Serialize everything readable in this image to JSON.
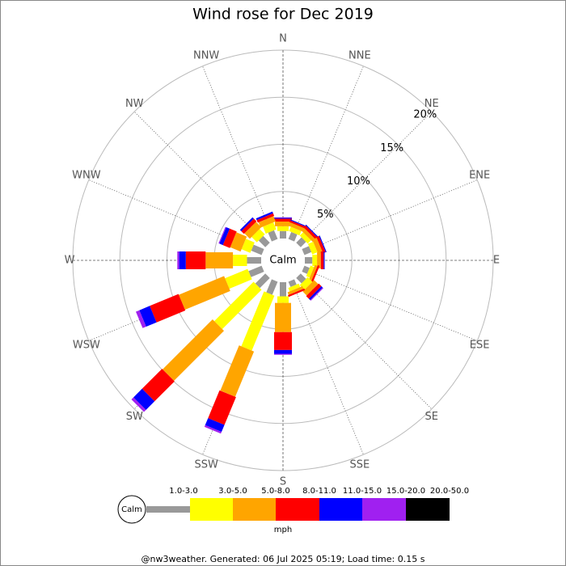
{
  "chart_data": {
    "type": "windrose",
    "title": "Wind rose for Dec 2019",
    "calm_label": "Calm",
    "units": "mph",
    "footer": "@nw3weather. Generated: 06 Jul 2025 05:19; Load time: 0.15 s",
    "directions": [
      "N",
      "NNE",
      "NE",
      "ENE",
      "E",
      "ESE",
      "SE",
      "SSE",
      "S",
      "SSW",
      "SW",
      "WSW",
      "W",
      "WNW",
      "NW",
      "NNW"
    ],
    "rlim": [
      0,
      20
    ],
    "rticks": [
      {
        "value": 5,
        "label": "5%"
      },
      {
        "value": 10,
        "label": "10%"
      },
      {
        "value": 15,
        "label": "15%"
      },
      {
        "value": 20,
        "label": "20%"
      }
    ],
    "series": [
      {
        "name": "1.0-3.0",
        "color": "#999999",
        "values": [
          0.8,
          0.8,
          0.8,
          0.8,
          0.8,
          0.6,
          0.8,
          0.6,
          1.5,
          1.5,
          1.5,
          1.5,
          1.5,
          1.2,
          1.0,
          1.0
        ]
      },
      {
        "name": "3.0-5.0",
        "color": "#ffff00",
        "values": [
          0.5,
          0.5,
          0.5,
          0.6,
          0.5,
          0.4,
          0.7,
          0.4,
          0.7,
          6.3,
          5.9,
          2.6,
          1.5,
          1.0,
          0.8,
          0.8
        ]
      },
      {
        "name": "5.0-8.0",
        "color": "#ffa500",
        "values": [
          0.5,
          0.4,
          0.4,
          0.5,
          0.4,
          0.3,
          0.6,
          0.3,
          3.1,
          5.2,
          7.5,
          5.2,
          2.9,
          1.2,
          0.8,
          0.6
        ]
      },
      {
        "name": "8.0-11.0",
        "color": "#ff0000",
        "values": [
          0.3,
          0.2,
          0.3,
          0.3,
          0.3,
          0.2,
          0.4,
          0.2,
          1.9,
          3.2,
          3.0,
          3.3,
          2.1,
          0.8,
          0.4,
          0.3
        ]
      },
      {
        "name": "11.0-15.0",
        "color": "#0000ff",
        "values": [
          0.1,
          0.1,
          0.1,
          0.1,
          0.1,
          0,
          0.2,
          0,
          0.4,
          0.8,
          1.3,
          1.2,
          0.7,
          0.4,
          0.2,
          0.2
        ]
      },
      {
        "name": "15.0-20.0",
        "color": "#a020f0",
        "values": [
          0.05,
          0,
          0,
          0,
          0,
          0,
          0.1,
          0,
          0.1,
          0.2,
          0.3,
          0.4,
          0.2,
          0.1,
          0,
          0
        ]
      },
      {
        "name": "20.0-50.0",
        "color": "#000000",
        "values": [
          0,
          0,
          0,
          0,
          0,
          0,
          0,
          0,
          0,
          0,
          0,
          0,
          0,
          0,
          0,
          0
        ]
      }
    ]
  }
}
